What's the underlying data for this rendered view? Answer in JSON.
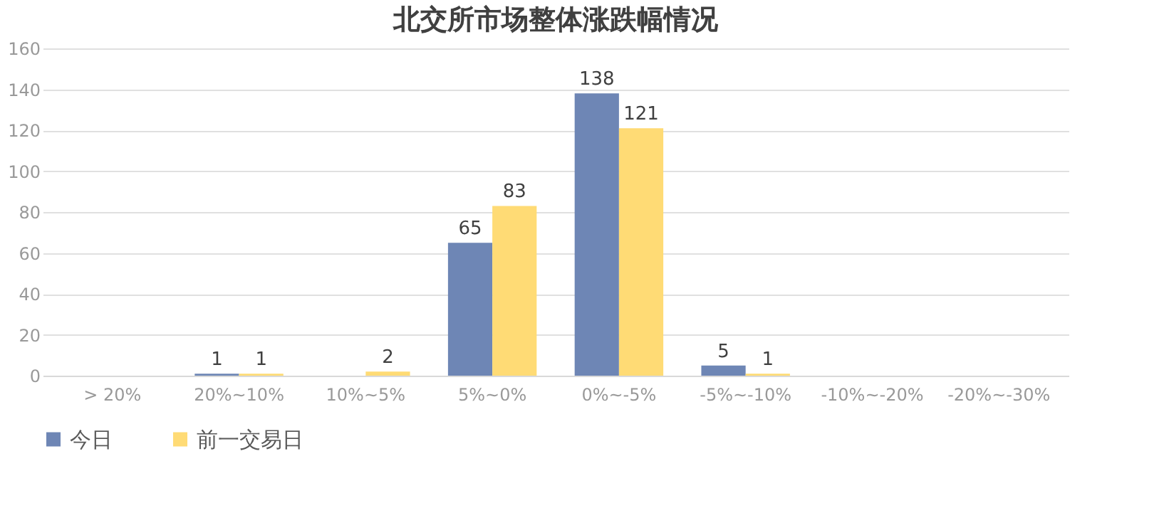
{
  "chart_data": {
    "type": "bar",
    "title": "北交所市场整体涨跌幅情况",
    "categories": [
      "> 20%",
      "20%~10%",
      "10%~5%",
      "5%~0%",
      "0%~-5%",
      "-5%~-10%",
      "-10%~-20%",
      "-20%~-30%"
    ],
    "series": [
      {
        "name": "今日",
        "color": "#6e86b5",
        "values": [
          0,
          1,
          0,
          65,
          138,
          5,
          0,
          0
        ],
        "value_labels": [
          null,
          "1",
          null,
          "65",
          "138",
          "5",
          null,
          null
        ]
      },
      {
        "name": "前一交易日",
        "color": "#ffdb75",
        "values": [
          0,
          1,
          2,
          83,
          121,
          1,
          0,
          0
        ],
        "value_labels": [
          null,
          "1",
          "2",
          "83",
          "121",
          "1",
          null,
          null
        ]
      }
    ],
    "ylim": [
      0,
      160
    ],
    "yticks": [
      0,
      20,
      40,
      60,
      80,
      100,
      120,
      140,
      160
    ],
    "grid": "y",
    "legend": "bottom"
  }
}
